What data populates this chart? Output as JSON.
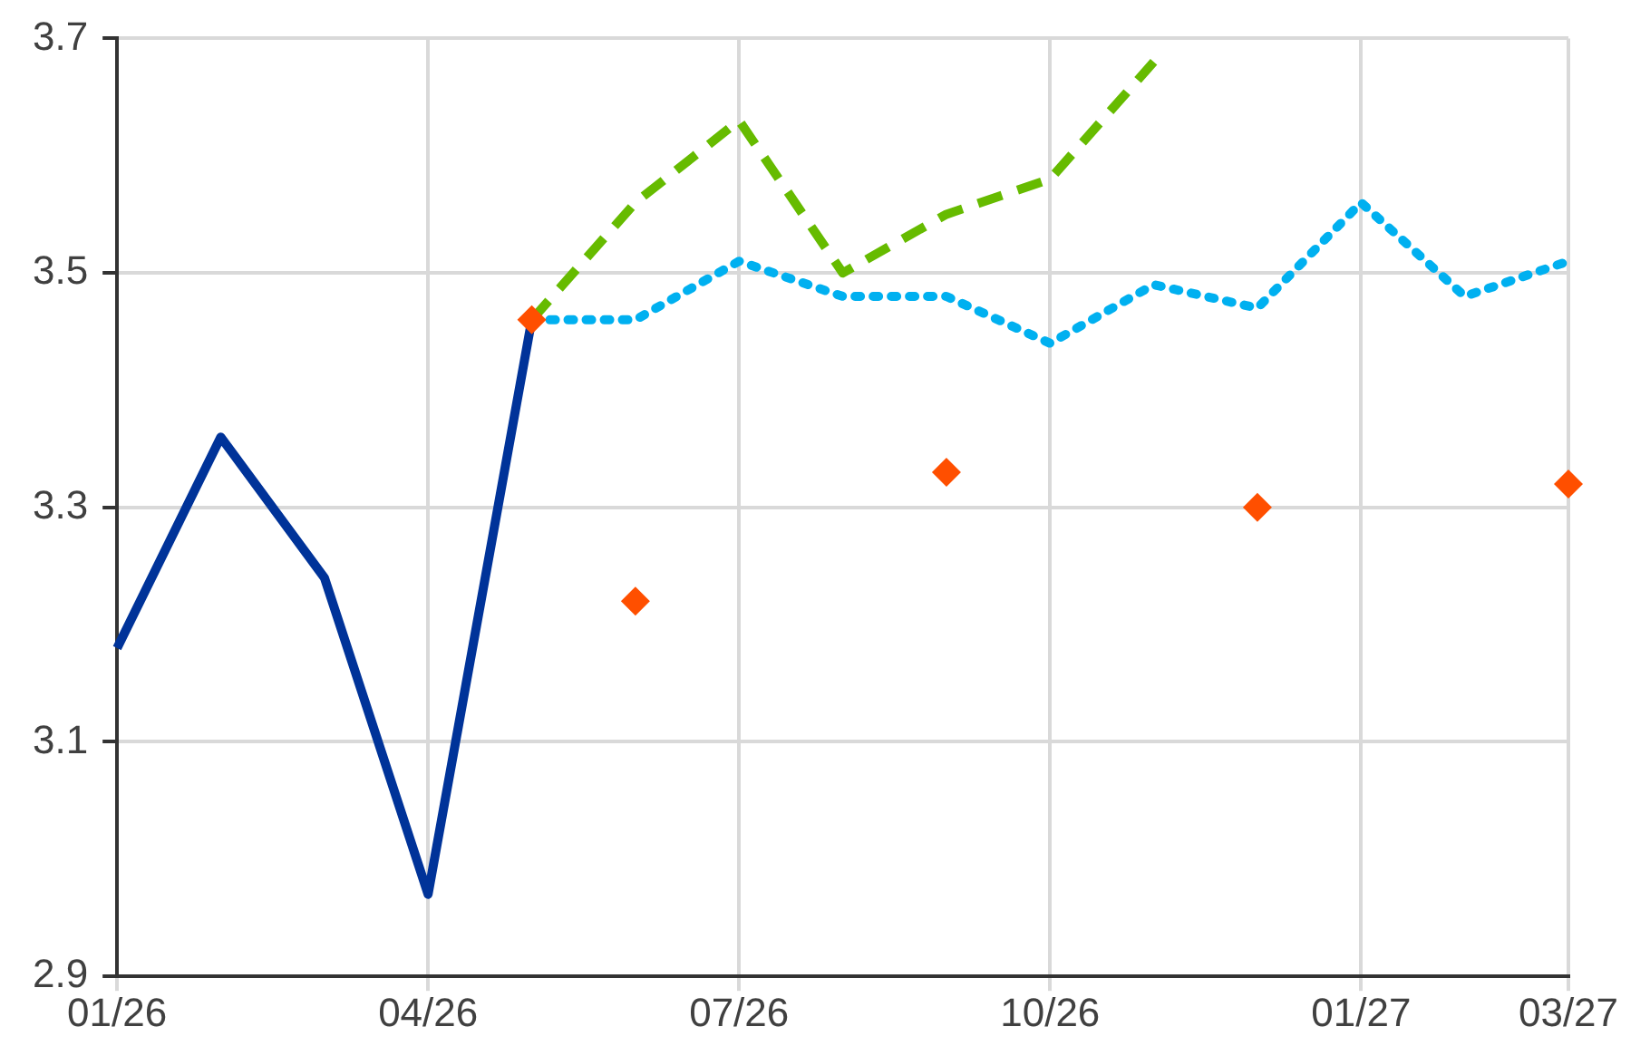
{
  "chart_data": {
    "type": "line",
    "categories": [
      "01/26",
      null,
      null,
      "04/26",
      null,
      null,
      "07/26",
      null,
      null,
      "10/26",
      null,
      null,
      "01/27",
      null,
      "03/27"
    ],
    "ylim": [
      2.9,
      3.7
    ],
    "yticks": [
      2.9,
      3.1,
      3.3,
      3.5,
      3.7
    ],
    "grid": true,
    "legend": false,
    "marker": "none",
    "series": [
      {
        "color": "#003399",
        "line_style": "solid",
        "values": [
          3.18,
          3.36,
          3.24,
          2.97,
          3.46,
          null,
          null,
          null,
          null,
          null,
          null,
          null,
          null,
          null,
          null
        ]
      },
      {
        "color": "#66bb00",
        "line_style": "dashed",
        "values": [
          null,
          null,
          null,
          null,
          3.46,
          3.56,
          3.63,
          3.5,
          3.55,
          3.58,
          3.68,
          null,
          null,
          null,
          null
        ]
      },
      {
        "color": "#00b0f0",
        "line_style": "dotted",
        "values": [
          null,
          null,
          null,
          null,
          3.46,
          3.46,
          3.51,
          3.48,
          3.48,
          3.44,
          3.49,
          3.47,
          3.56,
          3.48,
          3.51
        ]
      },
      {
        "type": "scatter",
        "color": "#ff4f00",
        "marker": "diamond",
        "values": [
          null,
          null,
          null,
          null,
          3.46,
          3.22,
          null,
          null,
          3.33,
          null,
          null,
          3.3,
          null,
          null,
          3.32
        ]
      }
    ]
  }
}
